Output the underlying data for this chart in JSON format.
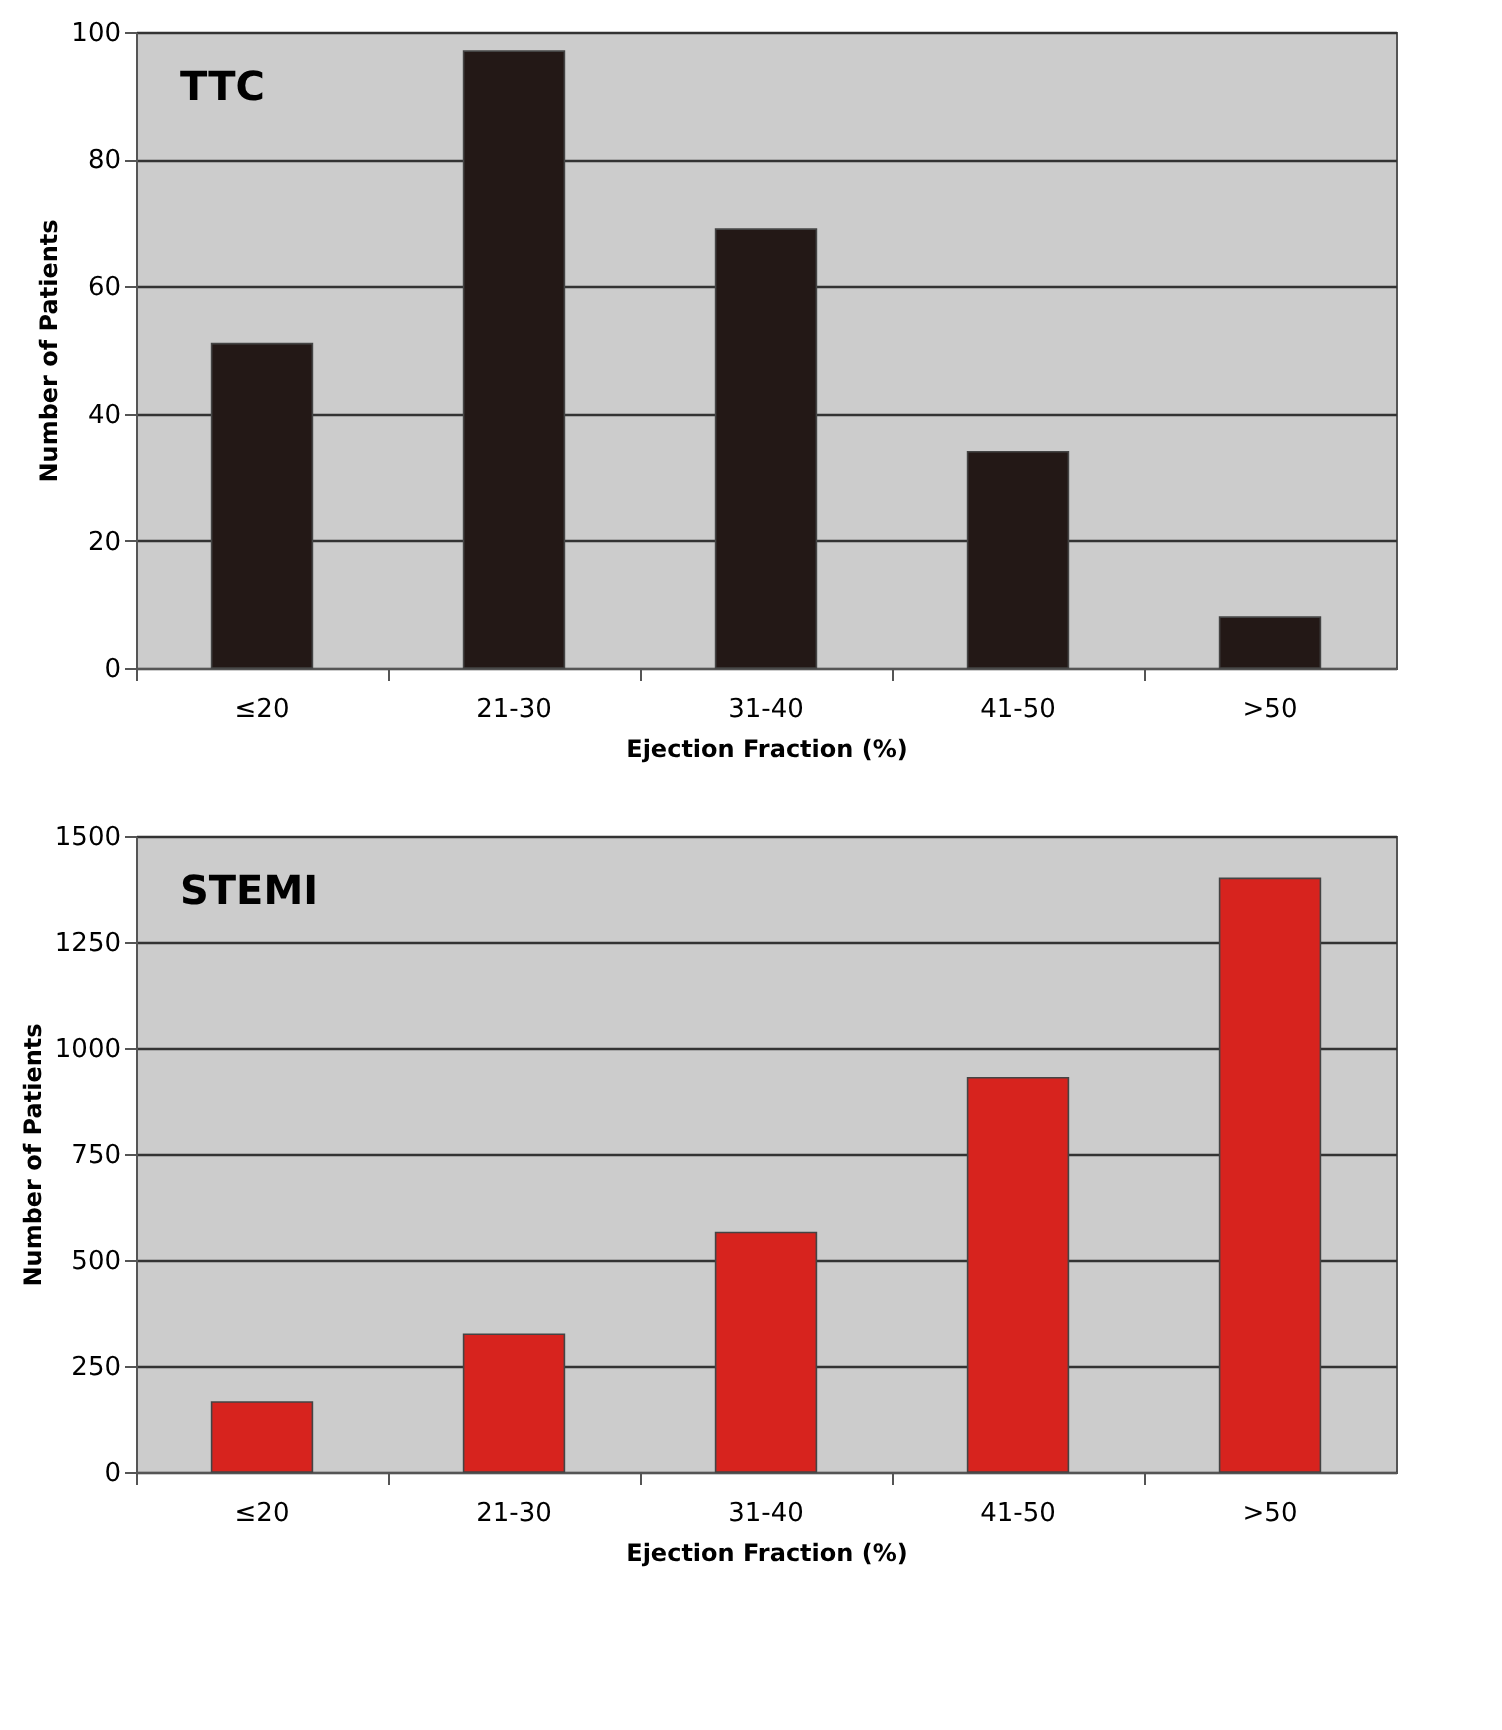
{
  "chart_data": [
    {
      "type": "bar",
      "title": "TTC",
      "xlabel": "Ejection Fraction (%)",
      "ylabel": "Number  of Patients",
      "categories": [
        "≤20",
        "21-30",
        "31-40",
        "41-50",
        ">50"
      ],
      "values": [
        51,
        97,
        69,
        34,
        8
      ],
      "color": "#231816",
      "ylim": [
        0,
        100
      ],
      "yticks": [
        0,
        20,
        40,
        60,
        80,
        100
      ],
      "grid": "y"
    },
    {
      "type": "bar",
      "title": "STEMI",
      "xlabel": "Ejection Fraction (%)",
      "ylabel": "Number of Patients",
      "categories": [
        "≤20",
        "21-30",
        "31-40",
        "41-50",
        ">50"
      ],
      "values": [
        165,
        325,
        565,
        930,
        1400
      ],
      "color": "#d7231e",
      "ylim": [
        0,
        1500
      ],
      "yticks": [
        0,
        250,
        500,
        750,
        1000,
        1250,
        1500
      ],
      "grid": "y"
    }
  ]
}
